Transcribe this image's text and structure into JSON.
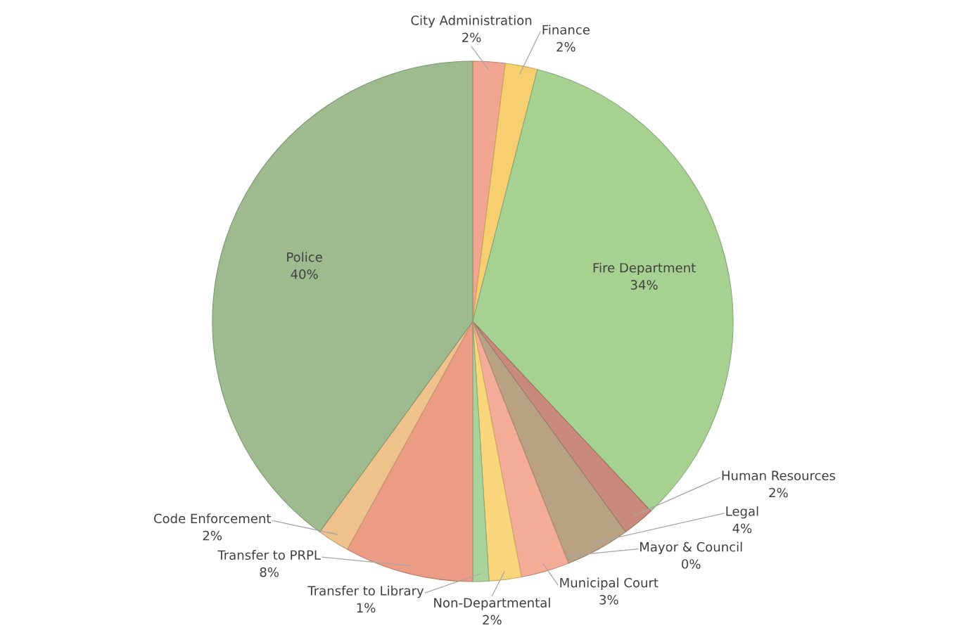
{
  "chart_data": {
    "type": "pie",
    "categories": [
      "City Administration",
      "Finance",
      "Fire Department",
      "Human Resources",
      "Legal",
      "Mayor & Council",
      "Municipal Court",
      "Non-Departmental",
      "Transfer to Library",
      "Transfer to PRPL",
      "Code Enforcement",
      "Police"
    ],
    "values": [
      2,
      2,
      34,
      2,
      4,
      0,
      3,
      2,
      1,
      8,
      2,
      40
    ],
    "value_labels": [
      "2%",
      "2%",
      "34%",
      "2%",
      "4%",
      "0%",
      "3%",
      "2%",
      "1%",
      "8%",
      "2%",
      "40%"
    ],
    "colors": [
      "#f2a590",
      "#f8cf70",
      "#a6d191",
      "#c98a7c",
      "#b9a282",
      "#6f9d6c",
      "#f4ab97",
      "#f9d67c",
      "#a8d49c",
      "#ec9b85",
      "#efc28c",
      "#9dbb8f"
    ]
  }
}
